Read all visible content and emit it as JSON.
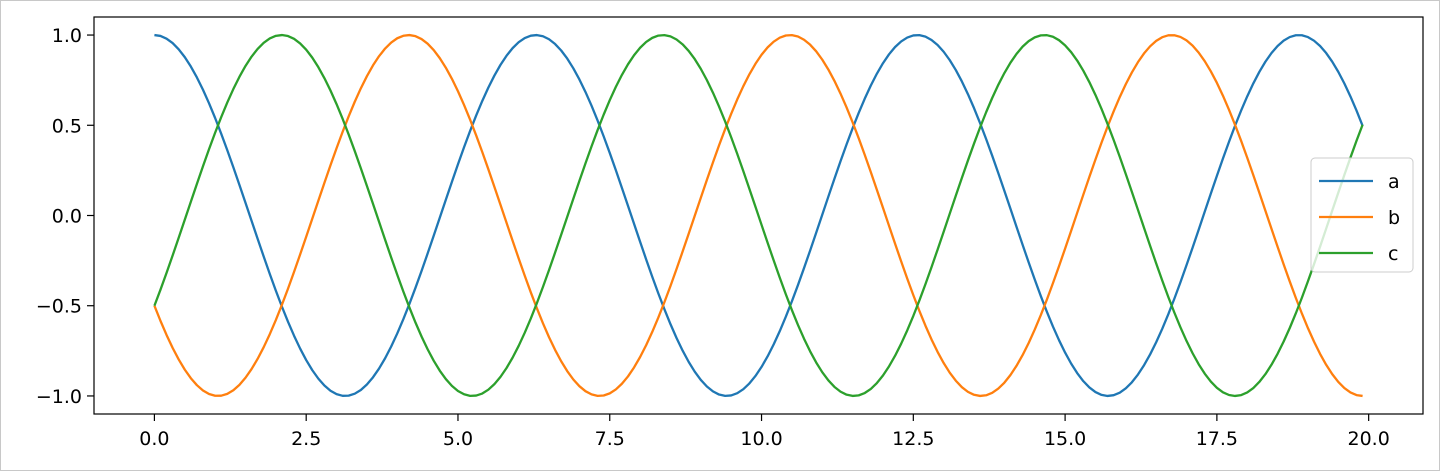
{
  "chart_data": {
    "type": "line",
    "title": "",
    "xlabel": "",
    "ylabel": "",
    "xlim": [
      -0.995,
      20.895
    ],
    "ylim": [
      -1.1,
      1.1
    ],
    "x_range": [
      0.0,
      19.9
    ],
    "x_step": 0.1,
    "x_ticks": [
      "0.0",
      "2.5",
      "5.0",
      "7.5",
      "10.0",
      "12.5",
      "15.0",
      "17.5",
      "20.0"
    ],
    "y_ticks": [
      "1.0",
      "0.5",
      "0.0",
      "−0.5",
      "−1.0"
    ],
    "x_tick_values": [
      0.0,
      2.5,
      5.0,
      7.5,
      10.0,
      12.5,
      15.0,
      17.5,
      20.0
    ],
    "y_tick_values": [
      1.0,
      0.5,
      0.0,
      -0.5,
      -1.0
    ],
    "grid": false,
    "legend_position": "center-right",
    "series": [
      {
        "name": "a",
        "color": "#1f77b4",
        "function": "cos(x)"
      },
      {
        "name": "b",
        "color": "#ff7f0e",
        "function": "cos(x + 2.0944)"
      },
      {
        "name": "c",
        "color": "#2ca02c",
        "function": "cos(x + 4.1888)"
      }
    ]
  }
}
